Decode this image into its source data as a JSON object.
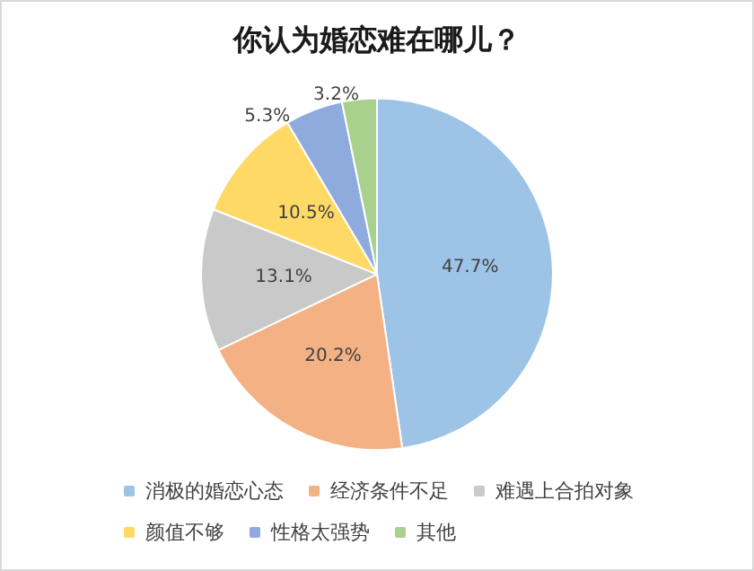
{
  "chart_data": {
    "type": "pie",
    "title": "你认为婚恋难在哪儿？",
    "categories": [
      "消极的婚恋心态",
      "经济条件不足",
      "难遇上合拍对象",
      "颜值不够",
      "性格太强势",
      "其他"
    ],
    "values": [
      47.7,
      20.2,
      13.1,
      10.5,
      5.3,
      3.2
    ],
    "value_labels": [
      "47.7%",
      "20.2%",
      "13.1%",
      "10.5%",
      "5.3%",
      "3.2%"
    ],
    "colors": [
      "#9dc3e6",
      "#f4b183",
      "#c9c9c9",
      "#ffd966",
      "#8faadc",
      "#a9d18e"
    ],
    "legend": "bottom"
  }
}
